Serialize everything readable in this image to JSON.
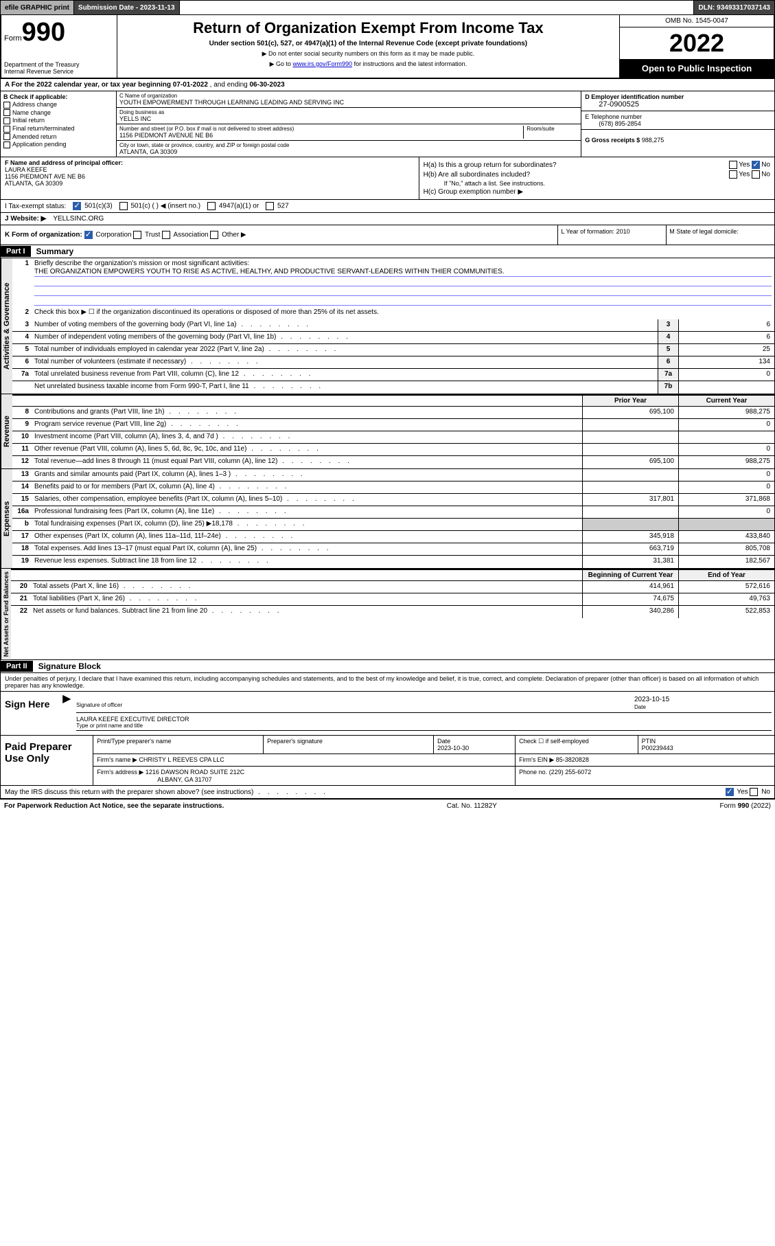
{
  "topbar": {
    "efile": "efile GRAPHIC print",
    "subdate_label": "Submission Date - 2023-11-13",
    "dln": "DLN: 93493317037143"
  },
  "header": {
    "form_prefix": "Form",
    "form_num": "990",
    "dept": "Department of the Treasury",
    "irs": "Internal Revenue Service",
    "title": "Return of Organization Exempt From Income Tax",
    "sub1": "Under section 501(c), 527, or 4947(a)(1) of the Internal Revenue Code (except private foundations)",
    "sub2": "▶ Do not enter social security numbers on this form as it may be made public.",
    "sub3_pre": "▶ Go to ",
    "sub3_link": "www.irs.gov/Form990",
    "sub3_post": " for instructions and the latest information.",
    "omb": "OMB No. 1545-0047",
    "year": "2022",
    "openpub": "Open to Public Inspection"
  },
  "lineA": {
    "label": "A For the 2022 calendar year, or tax year beginning ",
    "begin": "07-01-2022",
    "mid": "   , and ending ",
    "end": "06-30-2023"
  },
  "boxB": {
    "hdr": "B Check if applicable:",
    "opts": [
      "Address change",
      "Name change",
      "Initial return",
      "Final return/terminated",
      "Amended return",
      "Application pending"
    ]
  },
  "boxC": {
    "name_lbl": "C Name of organization",
    "name": "YOUTH EMPOWERMENT THROUGH LEARNING LEADING AND SERVING INC",
    "dba_lbl": "Doing business as",
    "dba": "YELLS INC",
    "addr_lbl": "Number and street (or P.O. box if mail is not delivered to street address)",
    "room_lbl": "Room/suite",
    "addr": "1156 PIEDMONT AVENUE NE B6",
    "city_lbl": "City or town, state or province, country, and ZIP or foreign postal code",
    "city": "ATLANTA, GA  30309"
  },
  "boxD": {
    "lbl": "D Employer identification number",
    "ein": "27-0900525"
  },
  "boxE": {
    "lbl": "E Telephone number",
    "val": "(678) 895-2854"
  },
  "boxG": {
    "lbl": "G Gross receipts $ ",
    "val": "988,275"
  },
  "boxF": {
    "lbl": "F Name and address of principal officer:",
    "name": "LAURA KEEFE",
    "addr1": "1156 PIEDMONT AVE NE B6",
    "addr2": "ATLANTA, GA  30309"
  },
  "boxH": {
    "ha": "H(a)  Is this a group return for subordinates?",
    "hb": "H(b)  Are all subordinates included?",
    "hb_note": "If \"No,\" attach a list. See instructions.",
    "hc": "H(c)  Group exemption number ▶",
    "yes": "Yes",
    "no": "No"
  },
  "lineI": {
    "lbl": "I     Tax-exempt status:",
    "o1": "501(c)(3)",
    "o2": "501(c) (  ) ◀ (insert no.)",
    "o3": "4947(a)(1) or",
    "o4": "527"
  },
  "lineJ": {
    "lbl": "J    Website: ▶ ",
    "val": "YELLSINC.ORG"
  },
  "lineK": {
    "lbl": "K Form of organization:",
    "o1": "Corporation",
    "o2": "Trust",
    "o3": "Association",
    "o4": "Other ▶",
    "L": "L Year of formation: 2010",
    "M": "M State of legal domicile:"
  },
  "part1": {
    "hdr": "Part I",
    "title": "Summary",
    "sections": {
      "gov": {
        "label": "Activities & Governance",
        "r1_lbl": "Briefly describe the organization's mission or most significant activities:",
        "r1_val": "THE ORGANIZATION EMPOWERS YOUTH TO RISE AS ACTIVE, HEALTHY, AND PRODUCTIVE SERVANT-LEADERS WITHIN THIER COMMUNITIES.",
        "r2": "Check this box ▶ ☐  if the organization discontinued its operations or disposed of more than 25% of its net assets.",
        "rows": [
          {
            "n": "3",
            "d": "Number of voting members of the governing body (Part VI, line 1a)",
            "b": "3",
            "v": "6"
          },
          {
            "n": "4",
            "d": "Number of independent voting members of the governing body (Part VI, line 1b)",
            "b": "4",
            "v": "6"
          },
          {
            "n": "5",
            "d": "Total number of individuals employed in calendar year 2022 (Part V, line 2a)",
            "b": "5",
            "v": "25"
          },
          {
            "n": "6",
            "d": "Total number of volunteers (estimate if necessary)",
            "b": "6",
            "v": "134"
          },
          {
            "n": "7a",
            "d": "Total unrelated business revenue from Part VIII, column (C), line 12",
            "b": "7a",
            "v": "0"
          },
          {
            "n": "",
            "d": "Net unrelated business taxable income from Form 990-T, Part I, line 11",
            "b": "7b",
            "v": ""
          }
        ]
      },
      "rev": {
        "label": "Revenue",
        "hdr_prior": "Prior Year",
        "hdr_curr": "Current Year",
        "rows": [
          {
            "n": "8",
            "d": "Contributions and grants (Part VIII, line 1h)",
            "p": "695,100",
            "c": "988,275"
          },
          {
            "n": "9",
            "d": "Program service revenue (Part VIII, line 2g)",
            "p": "",
            "c": "0"
          },
          {
            "n": "10",
            "d": "Investment income (Part VIII, column (A), lines 3, 4, and 7d )",
            "p": "",
            "c": ""
          },
          {
            "n": "11",
            "d": "Other revenue (Part VIII, column (A), lines 5, 6d, 8c, 9c, 10c, and 11e)",
            "p": "",
            "c": "0"
          },
          {
            "n": "12",
            "d": "Total revenue—add lines 8 through 11 (must equal Part VIII, column (A), line 12)",
            "p": "695,100",
            "c": "988,275"
          }
        ]
      },
      "exp": {
        "label": "Expenses",
        "rows": [
          {
            "n": "13",
            "d": "Grants and similar amounts paid (Part IX, column (A), lines 1–3 )",
            "p": "",
            "c": "0"
          },
          {
            "n": "14",
            "d": "Benefits paid to or for members (Part IX, column (A), line 4)",
            "p": "",
            "c": "0"
          },
          {
            "n": "15",
            "d": "Salaries, other compensation, employee benefits (Part IX, column (A), lines 5–10)",
            "p": "317,801",
            "c": "371,868"
          },
          {
            "n": "16a",
            "d": "Professional fundraising fees (Part IX, column (A), line 11e)",
            "p": "",
            "c": "0"
          },
          {
            "n": "b",
            "d": "Total fundraising expenses (Part IX, column (D), line 25) ▶18,178",
            "p": "shade",
            "c": "shade"
          },
          {
            "n": "17",
            "d": "Other expenses (Part IX, column (A), lines 11a–11d, 11f–24e)",
            "p": "345,918",
            "c": "433,840"
          },
          {
            "n": "18",
            "d": "Total expenses. Add lines 13–17 (must equal Part IX, column (A), line 25)",
            "p": "663,719",
            "c": "805,708"
          },
          {
            "n": "19",
            "d": "Revenue less expenses. Subtract line 18 from line 12",
            "p": "31,381",
            "c": "182,567"
          }
        ]
      },
      "net": {
        "label": "Net Assets or Fund Balances",
        "hdr_begin": "Beginning of Current Year",
        "hdr_end": "End of Year",
        "rows": [
          {
            "n": "20",
            "d": "Total assets (Part X, line 16)",
            "p": "414,961",
            "c": "572,616"
          },
          {
            "n": "21",
            "d": "Total liabilities (Part X, line 26)",
            "p": "74,675",
            "c": "49,763"
          },
          {
            "n": "22",
            "d": "Net assets or fund balances. Subtract line 21 from line 20",
            "p": "340,286",
            "c": "522,853"
          }
        ]
      }
    }
  },
  "part2": {
    "hdr": "Part II",
    "title": "Signature Block",
    "decl": "Under penalties of perjury, I declare that I have examined this return, including accompanying schedules and statements, and to the best of my knowledge and belief, it is true, correct, and complete. Declaration of preparer (other than officer) is based on all information of which preparer has any knowledge."
  },
  "sign": {
    "label": "Sign Here",
    "sig_lbl": "Signature of officer",
    "date_lbl": "Date",
    "date": "2023-10-15",
    "name": "LAURA KEEFE  EXECUTIVE DIRECTOR",
    "name_lbl": "Type or print name and title"
  },
  "prep": {
    "label": "Paid Preparer Use Only",
    "h1": "Print/Type preparer's name",
    "h2": "Preparer's signature",
    "h3": "Date",
    "h3v": "2023-10-30",
    "h4": "Check ☐ if self-employed",
    "h5": "PTIN",
    "h5v": "P00239443",
    "firm_lbl": "Firm's name    ▶",
    "firm": "CHRISTY L REEVES CPA LLC",
    "ein_lbl": "Firm's EIN ▶",
    "ein": "85-3820828",
    "addr_lbl": "Firm's address ▶",
    "addr1": "1216 DAWSON ROAD SUITE 212C",
    "addr2": "ALBANY, GA 31707",
    "phone_lbl": "Phone no.",
    "phone": "(229) 255-6072"
  },
  "mayirs": {
    "q": "May the IRS discuss this return with the preparer shown above? (see instructions)",
    "yes": "Yes",
    "no": "No"
  },
  "footer": {
    "left": "For Paperwork Reduction Act Notice, see the separate instructions.",
    "mid": "Cat. No. 11282Y",
    "right": "Form 990 (2022)"
  },
  "colors": {
    "link": "#0000cc",
    "topbar_dark": "#444444",
    "topbar_grey": "#b0b0b0",
    "check_blue": "#2a5caa",
    "shade": "#cccccc",
    "vlabel_bg": "#e8e8e8"
  }
}
